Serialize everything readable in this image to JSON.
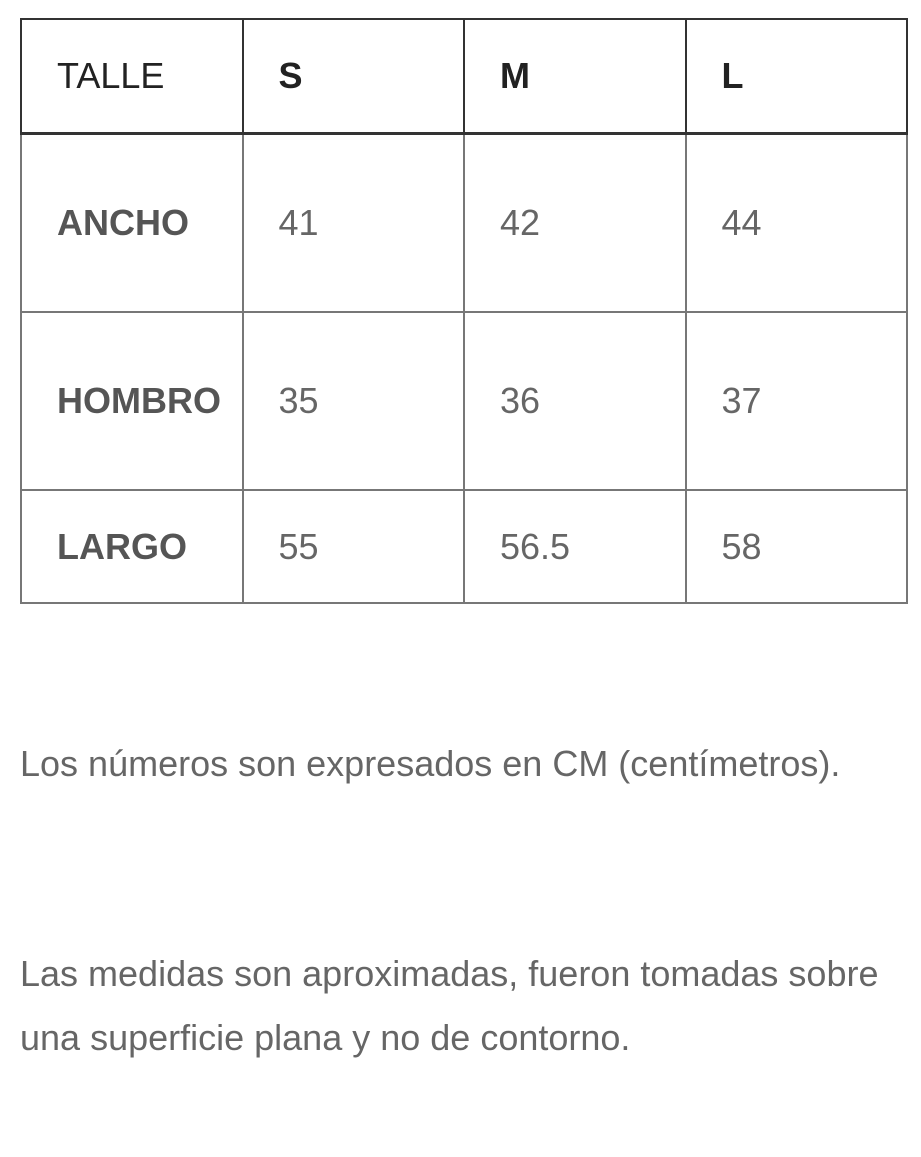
{
  "table": {
    "header": [
      "TALLE",
      "S",
      "M",
      "L"
    ],
    "rows": [
      [
        "ANCHO",
        41,
        42,
        44
      ],
      [
        "HOMBRO",
        35,
        36,
        37
      ],
      [
        "LARGO",
        55,
        56.5,
        58
      ]
    ]
  },
  "notes": [
    "Los números son expresados en CM (centímetros).",
    "Las medidas son aproximadas, fueron tomadas sobre una superficie plana y no de contorno."
  ]
}
